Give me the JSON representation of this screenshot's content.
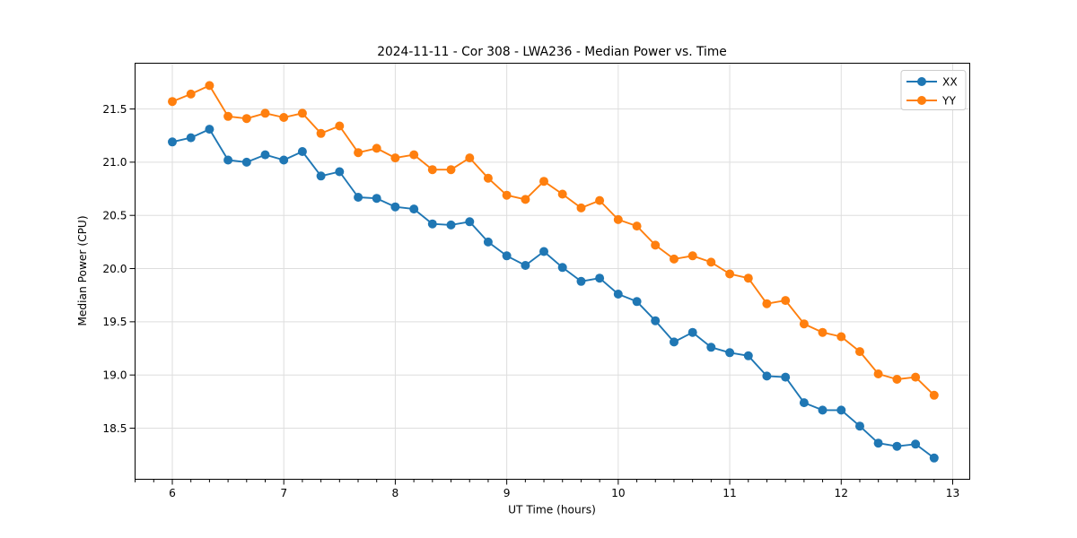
{
  "title": "2024-11-11 - Cor 308 - LWA236 - Median Power vs. Time",
  "colors": {
    "series_xx": "#1f77b4",
    "series_yy": "#ff7f0e",
    "grid": "#dedede",
    "spine": "#000000",
    "background": "#ffffff",
    "legend_border": "#cccccc"
  },
  "chart_data": {
    "type": "line",
    "title": "2024-11-11 - Cor 308 - LWA236 - Median Power vs. Time",
    "xlabel": "UT Time (hours)",
    "ylabel": "Median Power (CPU)",
    "xlim": [
      5.666,
      13.153
    ],
    "ylim": [
      18.02,
      21.93
    ],
    "x_ticks": [
      6,
      7,
      8,
      9,
      10,
      11,
      12,
      13
    ],
    "y_ticks": [
      18.5,
      19.0,
      19.5,
      20.0,
      20.5,
      21.0,
      21.5
    ],
    "minor_x_tick_step_hours": 0.1667,
    "grid": true,
    "legend_position": "upper right",
    "x": [
      6.0,
      6.167,
      6.333,
      6.5,
      6.667,
      6.833,
      7.0,
      7.167,
      7.333,
      7.5,
      7.667,
      7.833,
      8.0,
      8.167,
      8.333,
      8.5,
      8.667,
      8.833,
      9.0,
      9.167,
      9.333,
      9.5,
      9.667,
      9.833,
      10.0,
      10.167,
      10.333,
      10.5,
      10.667,
      10.833,
      11.0,
      11.167,
      11.333,
      11.5,
      11.667,
      11.833,
      12.0,
      12.167,
      12.333,
      12.5,
      12.667,
      12.833
    ],
    "series": [
      {
        "name": "XX",
        "color": "#1f77b4",
        "values": [
          21.19,
          21.23,
          21.31,
          21.02,
          21.0,
          21.07,
          21.02,
          21.1,
          20.87,
          20.91,
          20.67,
          20.66,
          20.58,
          20.56,
          20.42,
          20.41,
          20.44,
          20.25,
          20.12,
          20.03,
          20.16,
          20.01,
          19.88,
          19.91,
          19.76,
          19.69,
          19.51,
          19.31,
          19.4,
          19.26,
          19.21,
          19.18,
          18.99,
          18.98,
          18.74,
          18.67,
          18.67,
          18.52,
          18.36,
          18.33,
          18.35,
          18.22
        ]
      },
      {
        "name": "YY",
        "color": "#ff7f0e",
        "values": [
          21.57,
          21.64,
          21.72,
          21.43,
          21.41,
          21.46,
          21.42,
          21.46,
          21.27,
          21.34,
          21.09,
          21.13,
          21.04,
          21.07,
          20.93,
          20.93,
          21.04,
          20.85,
          20.69,
          20.65,
          20.82,
          20.7,
          20.57,
          20.64,
          20.46,
          20.4,
          20.22,
          20.09,
          20.12,
          20.06,
          19.95,
          19.91,
          19.67,
          19.7,
          19.48,
          19.4,
          19.36,
          19.22,
          19.01,
          18.96,
          18.98,
          18.81
        ]
      }
    ]
  }
}
